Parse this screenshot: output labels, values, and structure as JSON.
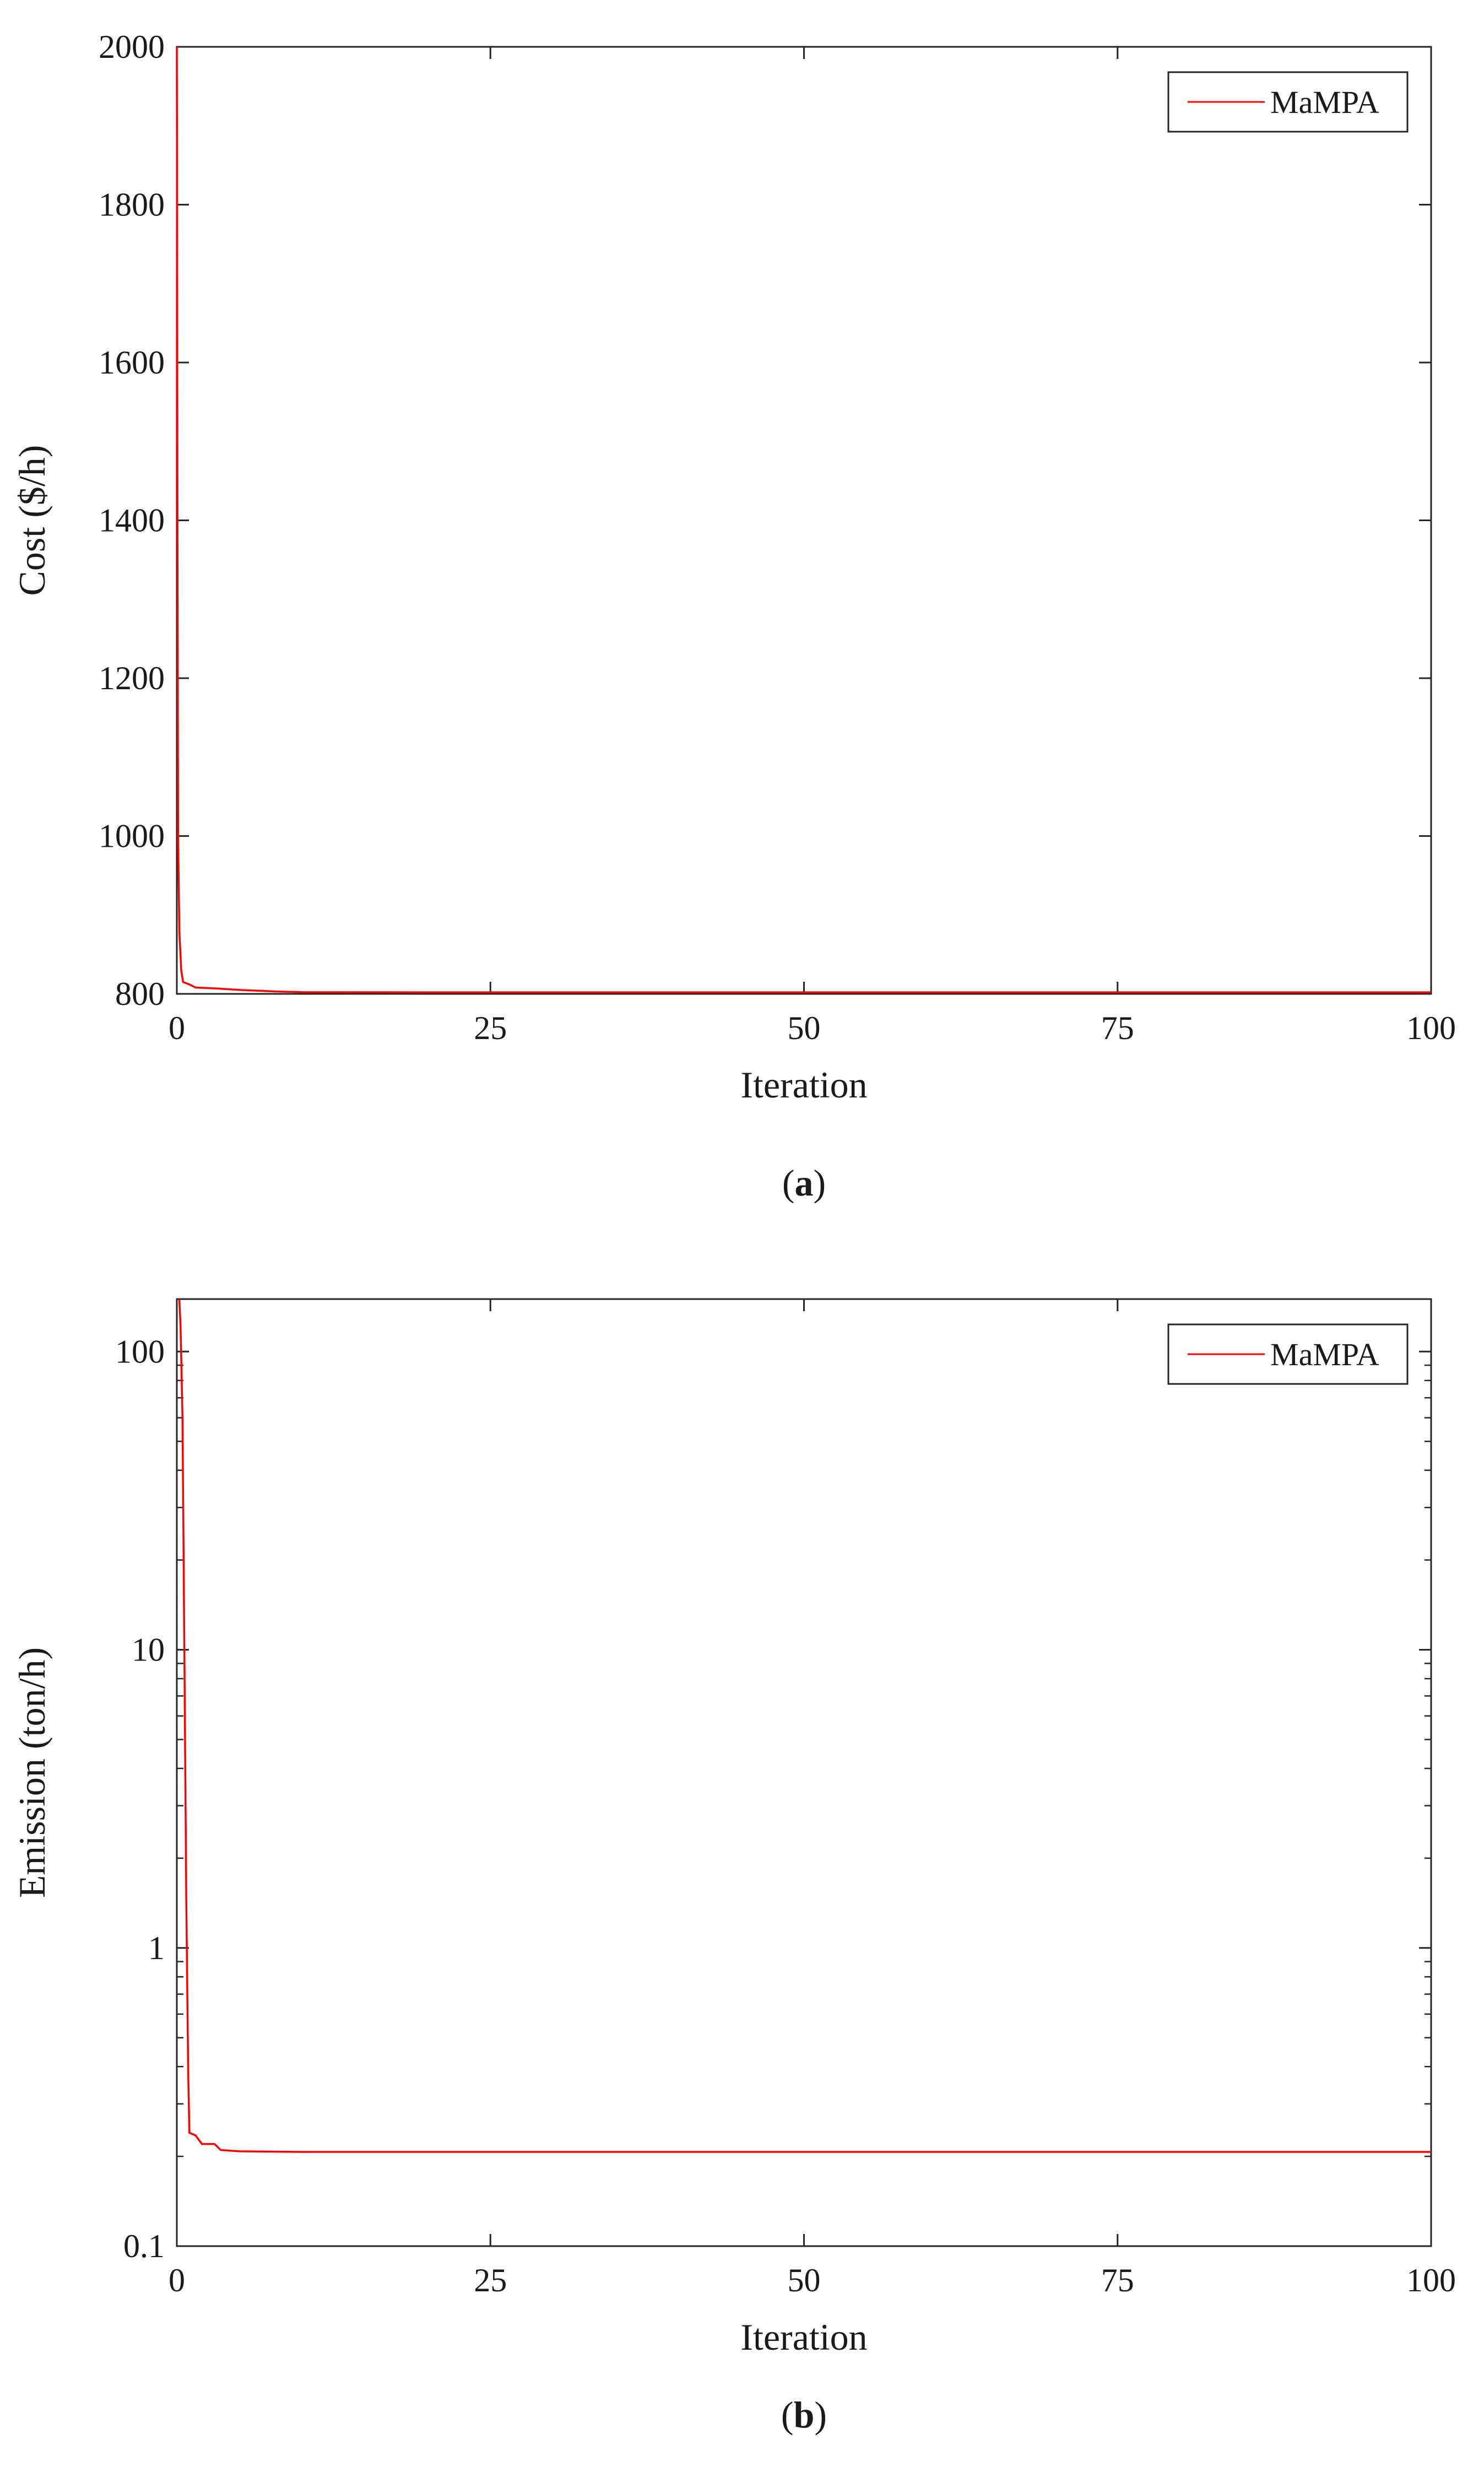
{
  "chart_data": [
    {
      "type": "line",
      "caption": "a",
      "title": "",
      "xlabel": "Iteration",
      "ylabel": "Cost ($/h)",
      "xlim": [
        0,
        100
      ],
      "ylim": [
        800,
        2000
      ],
      "yscale": "linear",
      "xticks": [
        0,
        25,
        50,
        75,
        100
      ],
      "yticks": [
        800,
        1000,
        1200,
        1400,
        1600,
        1800,
        2000
      ],
      "grid": false,
      "legend": "top-right",
      "series": [
        {
          "name": "MaMPA",
          "color": "#ff0000",
          "x": [
            0,
            0.05,
            0.1,
            0.2,
            0.35,
            0.5,
            1,
            1.5,
            3,
            5,
            8,
            10,
            20,
            30,
            50,
            75,
            100
          ],
          "y": [
            2000,
            1400,
            1000,
            880,
            830,
            815,
            812,
            808,
            807,
            805,
            803,
            802.2,
            802,
            802,
            802,
            802,
            802
          ]
        }
      ]
    },
    {
      "type": "line",
      "caption": "b",
      "title": "",
      "xlabel": "Iteration",
      "ylabel": "Emission (ton/h)",
      "xlim": [
        0,
        100
      ],
      "ylim": [
        0.1,
        150
      ],
      "yscale": "log",
      "xticks": [
        0,
        25,
        50,
        75,
        100
      ],
      "yticks": [
        0.1,
        1,
        10,
        100
      ],
      "grid": false,
      "legend": "top-right",
      "series": [
        {
          "name": "MaMPA",
          "color": "#ff0000",
          "x": [
            0.2,
            0.3,
            0.45,
            0.6,
            0.75,
            0.9,
            1.0,
            1.5,
            2,
            3,
            3.5,
            5,
            10,
            50,
            100
          ],
          "y": [
            150,
            120,
            60,
            10,
            1.5,
            0.4,
            0.24,
            0.235,
            0.22,
            0.22,
            0.21,
            0.208,
            0.207,
            0.207,
            0.207
          ]
        }
      ]
    }
  ]
}
